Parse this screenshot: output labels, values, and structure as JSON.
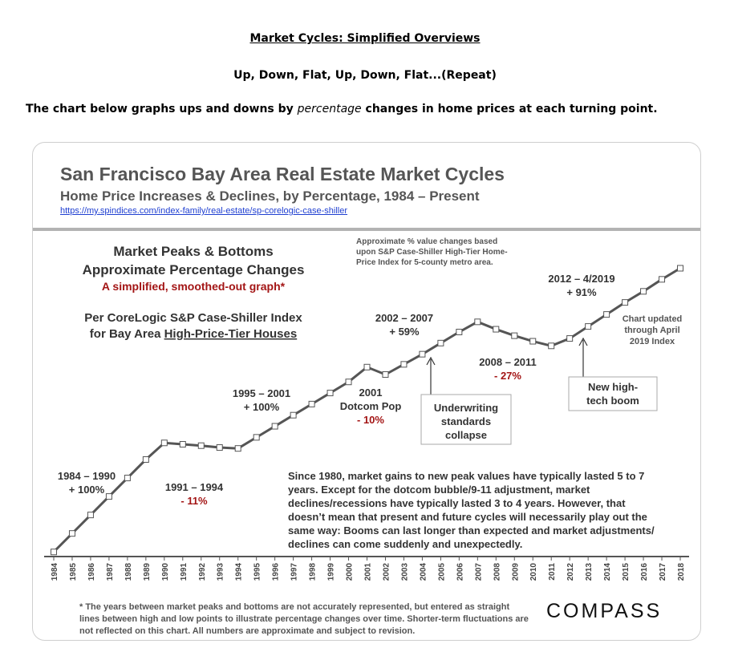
{
  "header": {
    "title": "Market Cycles: Simplified Overviews",
    "subtitle": "Up, Down, Flat, Up, Down, Flat...(Repeat)",
    "intro_before": "The chart below graphs ups and downs by ",
    "intro_emph": "percentage",
    "intro_after": " changes in home prices at each turning point."
  },
  "card": {
    "title": "San Francisco Bay Area Real Estate Market Cycles",
    "subtitle": "Home Price Increases & Declines, by Percentage, 1984 – Present",
    "link": "https://my.spindices.com/index-family/real-estate/sp-corelogic-case-shiller",
    "footnote": "* The years between market peaks and bottoms are not accurately represented, but entered as straight lines between high and low points to illustrate percentage changes over time. Shorter-term fluctuations are not reflected on this chart. All numbers are approximate and subject to revision.",
    "logo": "COMPASS"
  },
  "chart_data": {
    "type": "line",
    "title": "Market Peaks & Bottoms Approximate Percentage Changes",
    "x": [
      "1984",
      "1985",
      "1986",
      "1987",
      "1988",
      "1989",
      "1990",
      "1991",
      "1992",
      "1993",
      "1994",
      "1995",
      "1996",
      "1997",
      "1998",
      "1999",
      "2000",
      "2001",
      "2002",
      "2003",
      "2004",
      "2005",
      "2006",
      "2007",
      "2008",
      "2009",
      "2010",
      "2011",
      "2012",
      "2013",
      "2014",
      "2015",
      "2016",
      "2017",
      "2018"
    ],
    "values": [
      0,
      20,
      40,
      60,
      80,
      100,
      118,
      116.5,
      115,
      113,
      112,
      124,
      136,
      148,
      160,
      172,
      184,
      200,
      192,
      203,
      214,
      226,
      238,
      249,
      241,
      234,
      228,
      223,
      231,
      244,
      257,
      270,
      282,
      295,
      307
    ],
    "ylim": [
      -5,
      330
    ],
    "labels": {
      "box_title_line1": "Market Peaks & Bottoms",
      "box_title_line2": "Approximate Percentage Changes",
      "box_red": "A simplified, smoothed-out graph*",
      "box_index_line1": "Per CoreLogic S&P Case-Shiller Index",
      "box_index_line2_a": "for Bay Area ",
      "box_index_line2_b": "High-Price-Tier Houses",
      "approx_line1": "Approximate % value changes  based",
      "approx_line2": "upon S&P Case-Shiller High-Tier Home-",
      "approx_line3": "Price Index for 5-county metro area.",
      "c1984_years": "1984 – 1990",
      "c1984_pct": "+ 100%",
      "c1991_years": "1991 – 1994",
      "c1991_pct": "- 11%",
      "c1995_years": "1995 – 2001",
      "c1995_pct": "+ 100%",
      "c2001_year": "2001",
      "c2001_name": "Dotcom Pop",
      "c2001_pct": "- 10%",
      "c2002_years": "2002 – 2007",
      "c2002_pct": "+ 59%",
      "c2008_years": "2008 – 2011",
      "c2008_pct": "- 27%",
      "c2012_years": "2012 – 4/2019",
      "c2012_pct": "+ 91%",
      "updated_line1": "Chart updated",
      "updated_line2": "through April",
      "updated_line3": "2019 Index",
      "uw_line1": "Underwriting",
      "uw_line2": "standards",
      "uw_line3": "collapse",
      "boom_line1": "New high-",
      "boom_line2": "tech boom",
      "narr_line1": "Since 1980, market gains  to new peak values have typically lasted 5 to 7",
      "narr_line2": "years.  Except  for  the  dotcom  bubble/9-11  adjustment,  market",
      "narr_line3": "declines/recessions  have  typically  lasted  3  to  4  years.  However,  that",
      "narr_line4": "doesn’t mean that present and future cycles will necessarily play out the",
      "narr_line5": "same way: Booms can last longer than expected and market adjustments/",
      "narr_line6": "declines can come suddenly and unexpectedly."
    },
    "colors": {
      "line": "#555555",
      "marker_fill": "#ffffff",
      "negative": "#a31515",
      "text": "#333333",
      "link": "#1f3fd1"
    }
  }
}
